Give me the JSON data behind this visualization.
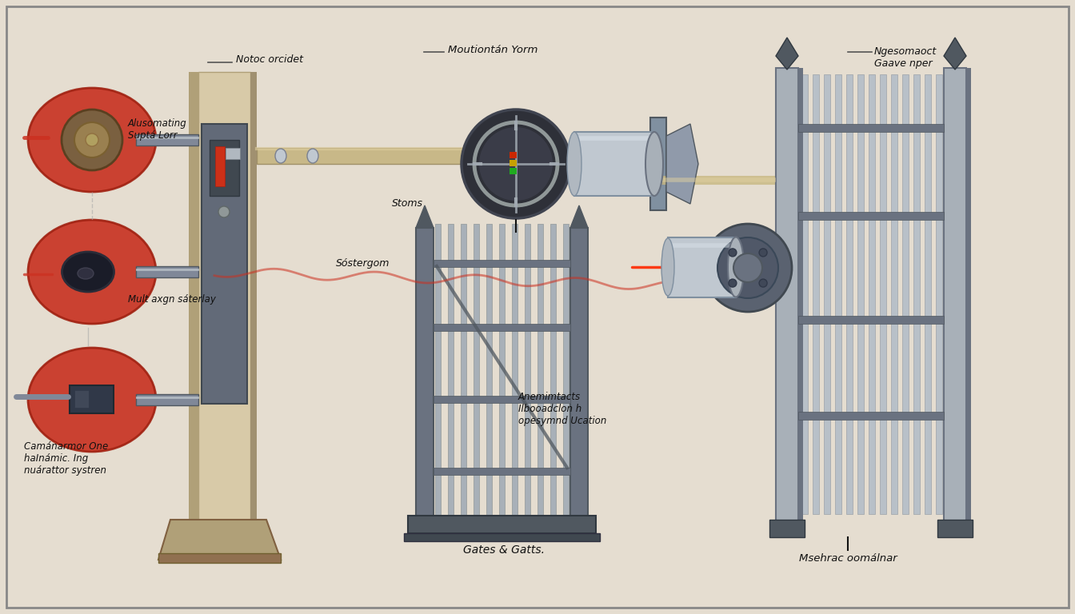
{
  "background_color": "#e5ddd0",
  "border_color": "#888888",
  "gray_metal": "#7a8090",
  "gray_light": "#a8b0b8",
  "gray_dark": "#505860",
  "gray_mid": "#6a7280",
  "red_circle": "#c83020",
  "red_dark": "#a02010",
  "tan_wood": "#c8b898",
  "tan_dark": "#b0a078",
  "tan_light": "#d8caa8",
  "silver": "#c0c8d0",
  "silver_dark": "#8090a0",
  "silver_light": "#d8e0e8",
  "text_color": "#111111",
  "labels": {
    "top_left_label1": "Notoc orcidet",
    "top_center_label": "Moutiontán Yorm",
    "top_right_label": "Ngesomaoct\nGaave nper",
    "left_label1": "Alusomating\nSuptá Lorr",
    "left_label2": "Mult axgn sáterlay",
    "left_label3": "Camánarmor One\nhaInámic. Ing\nnuárattor systren",
    "center_label1": "Stoms",
    "center_label2": "Sóstergom",
    "center_label3": "Anemimtacts\nIlbooadclon h\nopesymnd Ucation",
    "bottom_center": "Gates & Gatts.",
    "bottom_right": "Msehrac oomálnar"
  }
}
